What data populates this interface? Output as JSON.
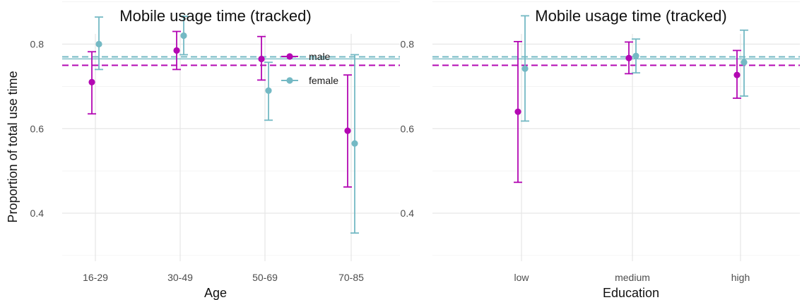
{
  "colors": {
    "male": "#b307b3",
    "female": "#74b9c4"
  },
  "ylabel": "Proportion of total use time",
  "legend": {
    "placement": "top-right",
    "entries": [
      "male",
      "female"
    ]
  },
  "chart_data": [
    {
      "type": "scatter",
      "title": "Mobile usage time (tracked)",
      "xlabel": "Age",
      "ylabel": "Proportion of total use time",
      "categories": [
        "16-29",
        "30-49",
        "50-69",
        "70-85"
      ],
      "ylim": [
        0.3,
        1.0
      ],
      "yticks": [
        "0.4",
        "0.6",
        "0.8",
        "1.0"
      ],
      "grid": true,
      "series": [
        {
          "name": "male",
          "values": [
            0.71,
            0.785,
            0.765,
            0.595
          ],
          "lower": [
            0.635,
            0.74,
            0.715,
            0.462
          ],
          "upper": [
            0.782,
            0.83,
            0.818,
            0.727
          ],
          "reference_line": 0.75
        },
        {
          "name": "female",
          "values": [
            0.8,
            0.82,
            0.69,
            0.565
          ],
          "lower": [
            0.74,
            0.775,
            0.62,
            0.353
          ],
          "upper": [
            0.864,
            0.866,
            0.757,
            0.775
          ],
          "reference_line": 0.765
        }
      ]
    },
    {
      "type": "scatter",
      "title": "Mobile usage time (tracked)",
      "xlabel": "Education",
      "ylabel": "",
      "categories": [
        "low",
        "medium",
        "high"
      ],
      "ylim": [
        0.3,
        1.0
      ],
      "yticks": [
        "0.4",
        "0.6",
        "0.8",
        "1.0"
      ],
      "grid": true,
      "series": [
        {
          "name": "male",
          "values": [
            0.64,
            0.767,
            0.727
          ],
          "lower": [
            0.473,
            0.73,
            0.672
          ],
          "upper": [
            0.806,
            0.805,
            0.785
          ],
          "reference_line": 0.75
        },
        {
          "name": "female",
          "values": [
            0.742,
            0.772,
            0.757
          ],
          "lower": [
            0.618,
            0.732,
            0.677
          ],
          "upper": [
            0.867,
            0.812,
            0.833
          ],
          "reference_line": 0.765
        }
      ]
    }
  ]
}
